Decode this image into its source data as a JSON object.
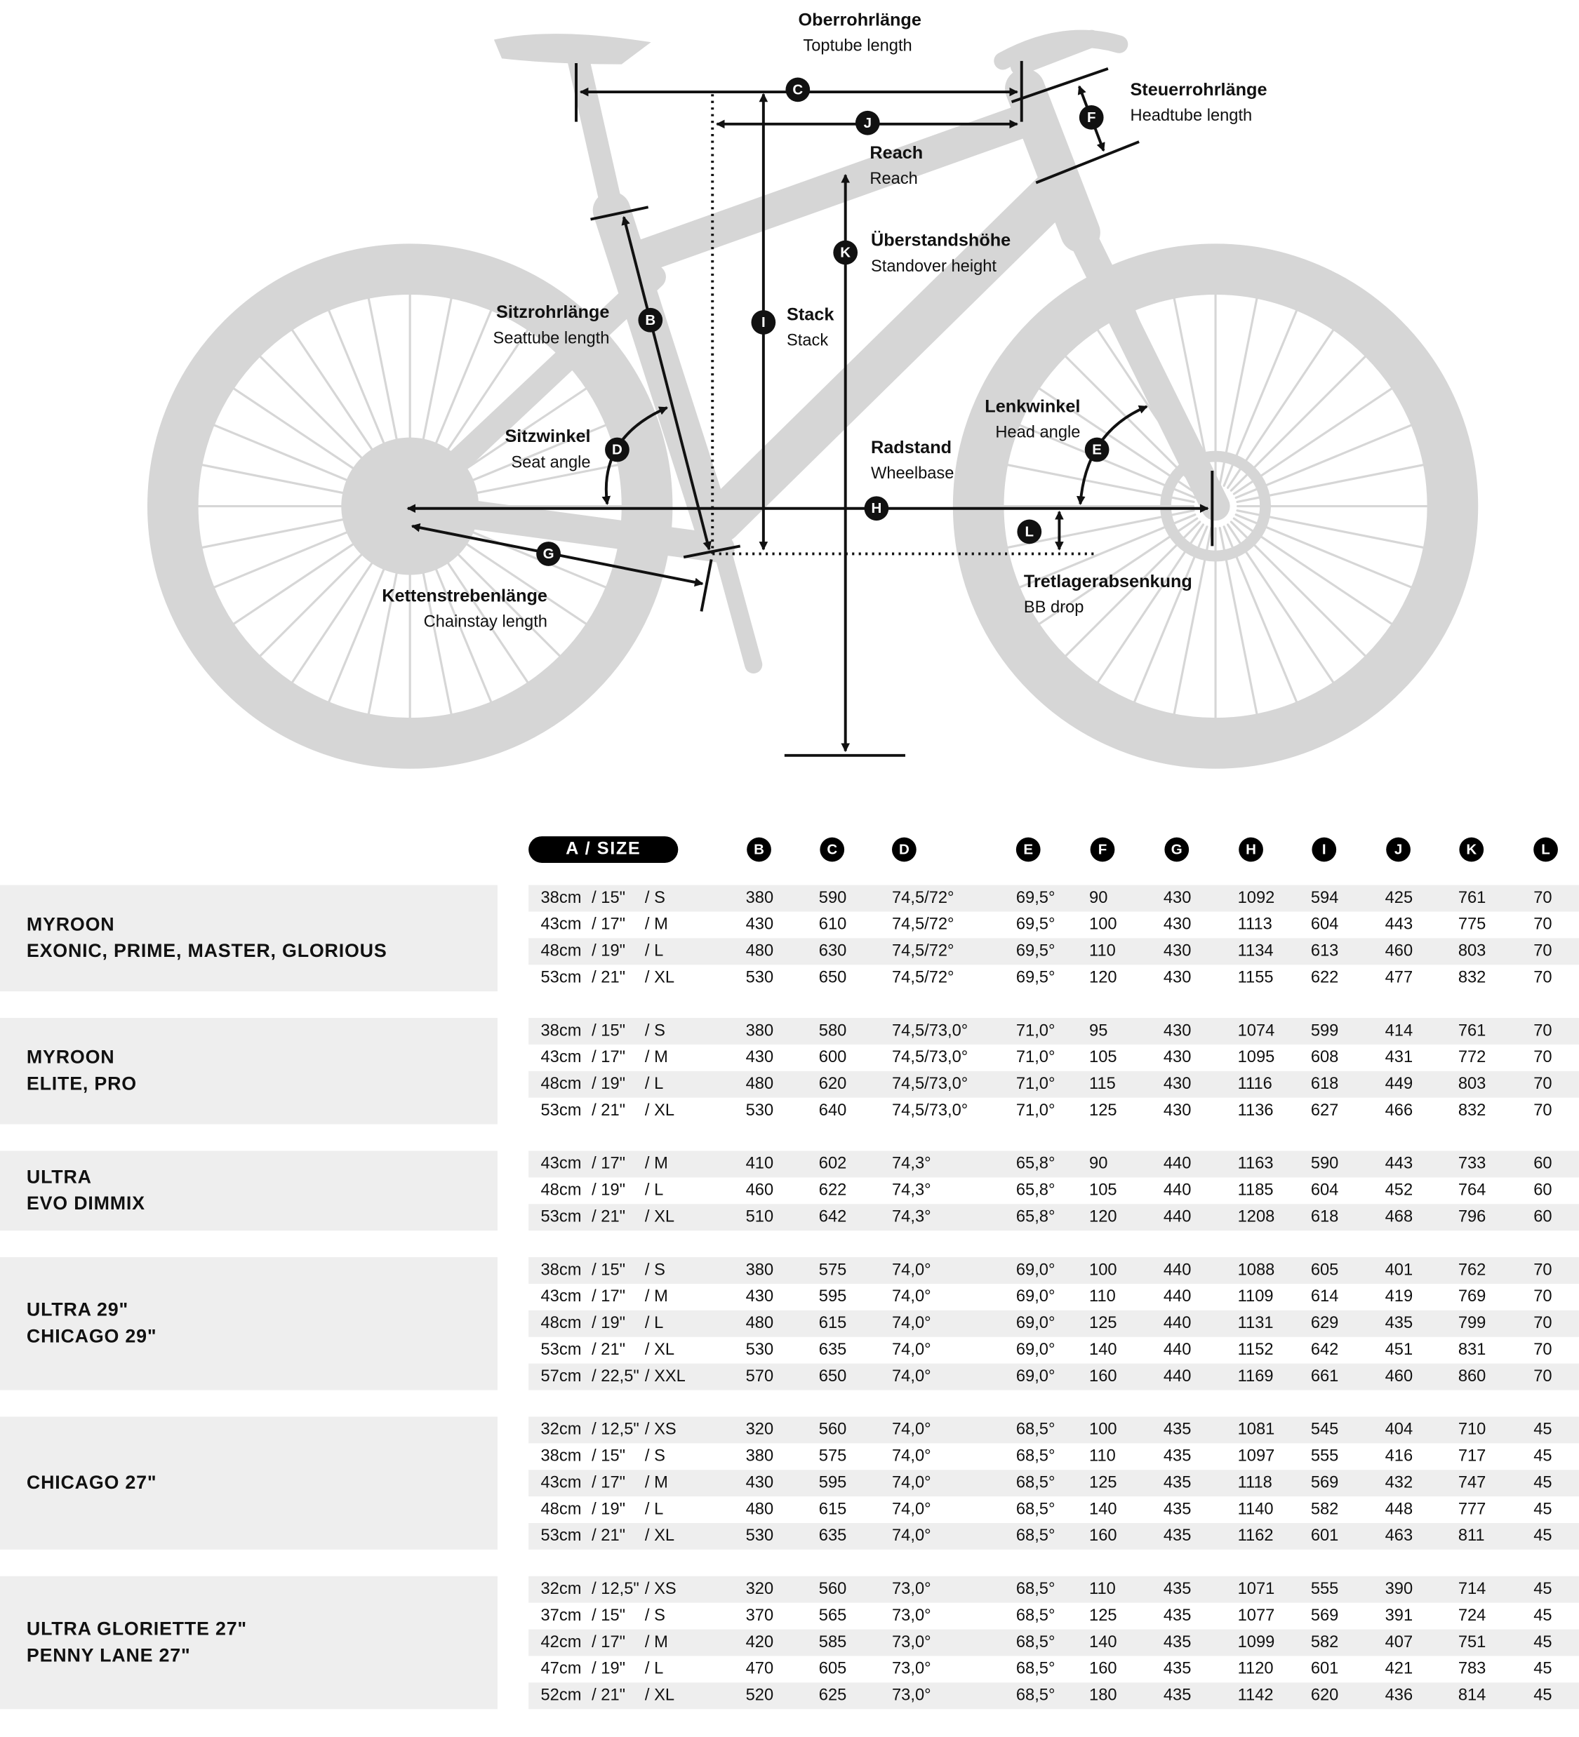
{
  "colors": {
    "frame": "#d6d6d6",
    "ink": "#111111",
    "row_alt": "#eeeeee"
  },
  "diagram": {
    "labels": {
      "C": {
        "de": "Oberrohrlänge",
        "en": "Toptube length"
      },
      "F": {
        "de": "Steuerrohrlänge",
        "en": "Headtube length"
      },
      "J": {
        "de": "Reach",
        "en": "Reach"
      },
      "K": {
        "de": "Überstandshöhe",
        "en": "Standover height"
      },
      "B": {
        "de": "Sitzrohrlänge",
        "en": "Seattube length"
      },
      "I": {
        "de": "Stack",
        "en": "Stack"
      },
      "D": {
        "de": "Sitzwinkel",
        "en": "Seat angle"
      },
      "E": {
        "de": "Lenkwinkel",
        "en": "Head angle"
      },
      "H": {
        "de": "Radstand",
        "en": "Wheelbase"
      },
      "L": {
        "de": "Tretlagerabsenkung",
        "en": "BB drop"
      },
      "G": {
        "de": "Kettenstrebenlänge",
        "en": "Chainstay length"
      }
    }
  },
  "table": {
    "size_header": "A / SIZE",
    "columns": [
      "B",
      "C",
      "D",
      "E",
      "F",
      "G",
      "H",
      "I",
      "J",
      "K",
      "L"
    ],
    "groups": [
      {
        "name": [
          "MYROON",
          "EXONIC, PRIME, MASTER, GLORIOUS"
        ],
        "rows": [
          {
            "cm": "38cm",
            "inch": "/ 15\"",
            "size": "/ S",
            "v": [
              "380",
              "590",
              "74,5/72°",
              "69,5°",
              "90",
              "430",
              "1092",
              "594",
              "425",
              "761",
              "70"
            ]
          },
          {
            "cm": "43cm",
            "inch": "/ 17\"",
            "size": "/ M",
            "v": [
              "430",
              "610",
              "74,5/72°",
              "69,5°",
              "100",
              "430",
              "1113",
              "604",
              "443",
              "775",
              "70"
            ]
          },
          {
            "cm": "48cm",
            "inch": "/ 19\"",
            "size": "/ L",
            "v": [
              "480",
              "630",
              "74,5/72°",
              "69,5°",
              "110",
              "430",
              "1134",
              "613",
              "460",
              "803",
              "70"
            ]
          },
          {
            "cm": "53cm",
            "inch": "/ 21\"",
            "size": "/ XL",
            "v": [
              "530",
              "650",
              "74,5/72°",
              "69,5°",
              "120",
              "430",
              "1155",
              "622",
              "477",
              "832",
              "70"
            ]
          }
        ]
      },
      {
        "name": [
          "MYROON",
          "ELITE, PRO"
        ],
        "rows": [
          {
            "cm": "38cm",
            "inch": "/ 15\"",
            "size": "/ S",
            "v": [
              "380",
              "580",
              "74,5/73,0°",
              "71,0°",
              "95",
              "430",
              "1074",
              "599",
              "414",
              "761",
              "70"
            ]
          },
          {
            "cm": "43cm",
            "inch": "/ 17\"",
            "size": "/ M",
            "v": [
              "430",
              "600",
              "74,5/73,0°",
              "71,0°",
              "105",
              "430",
              "1095",
              "608",
              "431",
              "772",
              "70"
            ]
          },
          {
            "cm": "48cm",
            "inch": "/ 19\"",
            "size": "/ L",
            "v": [
              "480",
              "620",
              "74,5/73,0°",
              "71,0°",
              "115",
              "430",
              "1116",
              "618",
              "449",
              "803",
              "70"
            ]
          },
          {
            "cm": "53cm",
            "inch": "/ 21\"",
            "size": "/ XL",
            "v": [
              "530",
              "640",
              "74,5/73,0°",
              "71,0°",
              "125",
              "430",
              "1136",
              "627",
              "466",
              "832",
              "70"
            ]
          }
        ]
      },
      {
        "name": [
          "ULTRA",
          "EVO DIMMIX"
        ],
        "rows": [
          {
            "cm": "43cm",
            "inch": "/ 17\"",
            "size": "/ M",
            "v": [
              "410",
              "602",
              "74,3°",
              "65,8°",
              "90",
              "440",
              "1163",
              "590",
              "443",
              "733",
              "60"
            ]
          },
          {
            "cm": "48cm",
            "inch": "/ 19\"",
            "size": "/ L",
            "v": [
              "460",
              "622",
              "74,3°",
              "65,8°",
              "105",
              "440",
              "1185",
              "604",
              "452",
              "764",
              "60"
            ]
          },
          {
            "cm": "53cm",
            "inch": "/ 21\"",
            "size": "/ XL",
            "v": [
              "510",
              "642",
              "74,3°",
              "65,8°",
              "120",
              "440",
              "1208",
              "618",
              "468",
              "796",
              "60"
            ]
          }
        ]
      },
      {
        "name": [
          "ULTRA 29\"",
          "CHICAGO 29\""
        ],
        "rows": [
          {
            "cm": "38cm",
            "inch": "/ 15\"",
            "size": "/ S",
            "v": [
              "380",
              "575",
              "74,0°",
              "69,0°",
              "100",
              "440",
              "1088",
              "605",
              "401",
              "762",
              "70"
            ]
          },
          {
            "cm": "43cm",
            "inch": "/ 17\"",
            "size": "/ M",
            "v": [
              "430",
              "595",
              "74,0°",
              "69,0°",
              "110",
              "440",
              "1109",
              "614",
              "419",
              "769",
              "70"
            ]
          },
          {
            "cm": "48cm",
            "inch": "/ 19\"",
            "size": "/ L",
            "v": [
              "480",
              "615",
              "74,0°",
              "69,0°",
              "125",
              "440",
              "1131",
              "629",
              "435",
              "799",
              "70"
            ]
          },
          {
            "cm": "53cm",
            "inch": "/ 21\"",
            "size": "/ XL",
            "v": [
              "530",
              "635",
              "74,0°",
              "69,0°",
              "140",
              "440",
              "1152",
              "642",
              "451",
              "831",
              "70"
            ]
          },
          {
            "cm": "57cm",
            "inch": "/ 22,5\"",
            "size": "/ XXL",
            "v": [
              "570",
              "650",
              "74,0°",
              "69,0°",
              "160",
              "440",
              "1169",
              "661",
              "460",
              "860",
              "70"
            ]
          }
        ]
      },
      {
        "name": [
          "CHICAGO 27\""
        ],
        "rows": [
          {
            "cm": "32cm",
            "inch": "/ 12,5\"",
            "size": "/ XS",
            "v": [
              "320",
              "560",
              "74,0°",
              "68,5°",
              "100",
              "435",
              "1081",
              "545",
              "404",
              "710",
              "45"
            ]
          },
          {
            "cm": "38cm",
            "inch": "/ 15\"",
            "size": "/ S",
            "v": [
              "380",
              "575",
              "74,0°",
              "68,5°",
              "110",
              "435",
              "1097",
              "555",
              "416",
              "717",
              "45"
            ]
          },
          {
            "cm": "43cm",
            "inch": "/ 17\"",
            "size": "/ M",
            "v": [
              "430",
              "595",
              "74,0°",
              "68,5°",
              "125",
              "435",
              "1118",
              "569",
              "432",
              "747",
              "45"
            ]
          },
          {
            "cm": "48cm",
            "inch": "/ 19\"",
            "size": "/ L",
            "v": [
              "480",
              "615",
              "74,0°",
              "68,5°",
              "140",
              "435",
              "1140",
              "582",
              "448",
              "777",
              "45"
            ]
          },
          {
            "cm": "53cm",
            "inch": "/ 21\"",
            "size": "/ XL",
            "v": [
              "530",
              "635",
              "74,0°",
              "68,5°",
              "160",
              "435",
              "1162",
              "601",
              "463",
              "811",
              "45"
            ]
          }
        ]
      },
      {
        "name": [
          "ULTRA GLORIETTE 27\"",
          "PENNY LANE 27\""
        ],
        "rows": [
          {
            "cm": "32cm",
            "inch": "/ 12,5\"",
            "size": "/ XS",
            "v": [
              "320",
              "560",
              "73,0°",
              "68,5°",
              "110",
              "435",
              "1071",
              "555",
              "390",
              "714",
              "45"
            ]
          },
          {
            "cm": "37cm",
            "inch": "/ 15\"",
            "size": "/ S",
            "v": [
              "370",
              "565",
              "73,0°",
              "68,5°",
              "125",
              "435",
              "1077",
              "569",
              "391",
              "724",
              "45"
            ]
          },
          {
            "cm": "42cm",
            "inch": "/ 17\"",
            "size": "/ M",
            "v": [
              "420",
              "585",
              "73,0°",
              "68,5°",
              "140",
              "435",
              "1099",
              "582",
              "407",
              "751",
              "45"
            ]
          },
          {
            "cm": "47cm",
            "inch": "/ 19\"",
            "size": "/ L",
            "v": [
              "470",
              "605",
              "73,0°",
              "68,5°",
              "160",
              "435",
              "1120",
              "601",
              "421",
              "783",
              "45"
            ]
          },
          {
            "cm": "52cm",
            "inch": "/ 21\"",
            "size": "/ XL",
            "v": [
              "520",
              "625",
              "73,0°",
              "68,5°",
              "180",
              "435",
              "1142",
              "620",
              "436",
              "814",
              "45"
            ]
          }
        ]
      }
    ]
  }
}
